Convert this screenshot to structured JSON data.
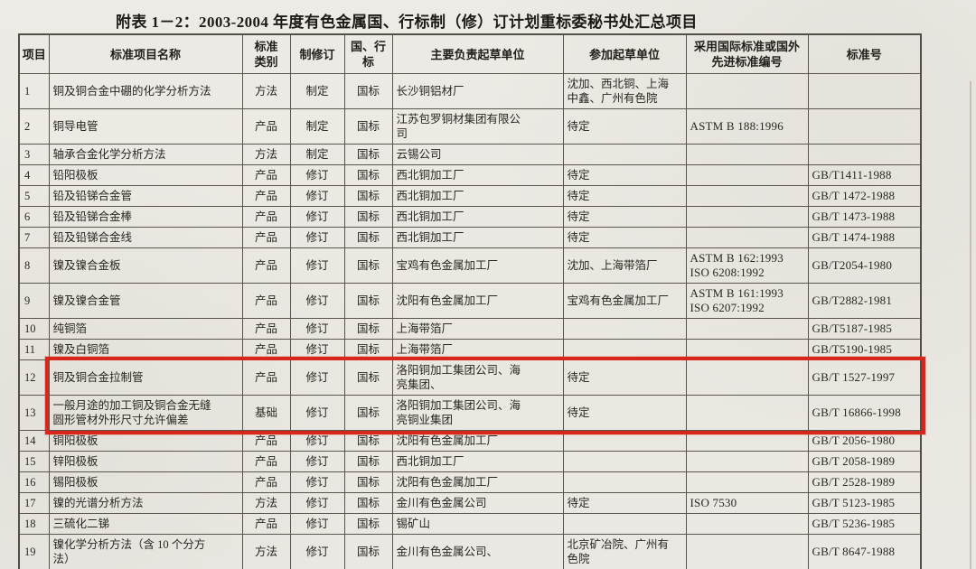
{
  "title": "附表 1－2：2003-2004 年度有色金属国、行标制（修）订计划重标委秘书处汇总项目",
  "table": {
    "headers": [
      "项目",
      "标准项目名称",
      "标准\n类别",
      "制修订",
      "国、行\n标",
      "主要负责起草单位",
      "参加起草单位",
      "采用国际标准或国外\n先进标准编号",
      "标准号"
    ],
    "rows": [
      [
        "1",
        "铜及铜合金中硼的化学分析方法",
        "方法",
        "制定",
        "国标",
        "长沙铜铝材厂",
        "沈加、西北铜、上海\n中鑫、广州有色院",
        "",
        ""
      ],
      [
        "2",
        "铜导电管",
        "产品",
        "制定",
        "国标",
        "江苏包罗铜材集团有限公\n司",
        "待定",
        "ASTM B 188:1996",
        ""
      ],
      [
        "3",
        "轴承合金化学分析方法",
        "方法",
        "制定",
        "国标",
        "云锡公司",
        "",
        "",
        ""
      ],
      [
        "4",
        "铅阳极板",
        "产品",
        "修订",
        "国标",
        "西北铜加工厂",
        "待定",
        "",
        "GB/T1411-1988"
      ],
      [
        "5",
        "铅及铅锑合金管",
        "产品",
        "修订",
        "国标",
        "西北铜加工厂",
        "待定",
        "",
        "GB/T 1472-1988"
      ],
      [
        "6",
        "铅及铅锑合金棒",
        "产品",
        "修订",
        "国标",
        "西北铜加工厂",
        "待定",
        "",
        "GB/T 1473-1988"
      ],
      [
        "7",
        "铅及铅锑合金线",
        "产品",
        "修订",
        "国标",
        "西北铜加工厂",
        "待定",
        "",
        "GB/T 1474-1988"
      ],
      [
        "8",
        "镍及镍合金板",
        "产品",
        "修订",
        "国标",
        "宝鸡有色金属加工厂",
        "沈加、上海带箔厂",
        "ASTM B 162:1993\nISO 6208:1992",
        "GB/T2054-1980"
      ],
      [
        "9",
        "镍及镍合金管",
        "产品",
        "修订",
        "国标",
        "沈阳有色金属加工厂",
        "宝鸡有色金属加工厂",
        "ASTM B 161:1993\nISO 6207:1992",
        "GB/T2882-1981"
      ],
      [
        "10",
        "纯铜箔",
        "产品",
        "修订",
        "国标",
        "上海带箔厂",
        "",
        "",
        "GB/T5187-1985"
      ],
      [
        "11",
        "镍及白铜箔",
        "产品",
        "修订",
        "国标",
        "上海带箔厂",
        "",
        "",
        "GB/T5190-1985"
      ],
      [
        "12",
        "铜及铜合金拉制管",
        "产品",
        "修订",
        "国标",
        "洛阳铜加工集团公司、海\n亮集团、",
        "待定",
        "",
        "GB/T 1527-1997"
      ],
      [
        "13",
        "一般月途的加工铜及铜合金无缝\n圆形管材外形尺寸允许偏差",
        "基础",
        "修订",
        "国标",
        "洛阳铜加工集团公司、海\n亮铜业集团",
        "待定",
        "",
        "GB/T 16866-1998"
      ],
      [
        "14",
        "铜阳极板",
        "产品",
        "修订",
        "国标",
        "沈阳有色金属加工厂",
        "",
        "",
        "GB/T 2056-1980"
      ],
      [
        "15",
        "锌阳极板",
        "产品",
        "修订",
        "国标",
        "西北铜加工厂",
        "",
        "",
        "GB/T 2058-1989"
      ],
      [
        "16",
        "锡阳极板",
        "产品",
        "修订",
        "国标",
        "沈阳有色金属加工厂",
        "",
        "",
        "GB/T 2528-1989"
      ],
      [
        "17",
        "镍的光谱分析方法",
        "方法",
        "修订",
        "国标",
        "金川有色金属公司",
        "待定",
        "ISO 7530",
        "GB/T 5123-1985"
      ],
      [
        "18",
        "三硫化二锑",
        "产品",
        "修订",
        "国标",
        "锡矿山",
        "",
        "",
        "GB/T 5236-1985"
      ],
      [
        "19",
        "镍化学分析方法（含 10 个分方\n法）",
        "方法",
        "修订",
        "国标",
        "金川有色金属公司、",
        "北京矿冶院、广州有\n色院",
        "",
        "GB/T 8647-1988"
      ]
    ],
    "highlight": {
      "first_row": 12,
      "last_row": 13,
      "color": "#d9261a"
    }
  },
  "colors": {
    "paper": "#ebe9e3",
    "border": "#5a554a",
    "text": "#2a2722"
  }
}
